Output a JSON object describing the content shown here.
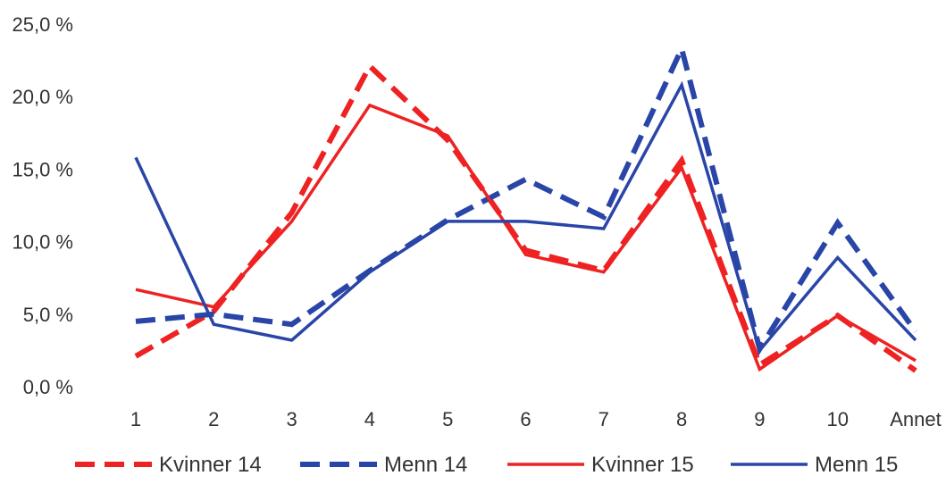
{
  "chart_data": {
    "type": "line",
    "categories": [
      "1",
      "2",
      "3",
      "4",
      "5",
      "6",
      "7",
      "8",
      "9",
      "10",
      "Annet"
    ],
    "ylim": [
      0,
      25
    ],
    "yticks": [
      "0,0 %",
      "5,0 %",
      "10,0 %",
      "15,0 %",
      "20,0 %",
      "25,0 %"
    ],
    "grid": false,
    "legend_position": "bottom",
    "series": [
      {
        "name": "Kvinner 14",
        "color": "#ee2222",
        "dashed": true,
        "values": [
          2.1,
          5.2,
          12.0,
          22.1,
          17.0,
          9.4,
          8.0,
          15.6,
          1.5,
          4.9,
          1.1
        ]
      },
      {
        "name": "Menn 14",
        "color": "#2a45a8",
        "dashed": true,
        "values": [
          4.5,
          5.0,
          4.3,
          8.0,
          11.5,
          14.3,
          11.7,
          23.3,
          2.6,
          11.3,
          3.8
        ]
      },
      {
        "name": "Kvinner 15",
        "color": "#ee2222",
        "dashed": false,
        "values": [
          6.7,
          5.5,
          11.4,
          19.4,
          17.3,
          9.1,
          7.9,
          15.1,
          1.2,
          4.9,
          1.8
        ]
      },
      {
        "name": "Menn 15",
        "color": "#2a45a8",
        "dashed": false,
        "values": [
          15.8,
          4.3,
          3.2,
          7.9,
          11.4,
          11.4,
          10.9,
          20.8,
          2.5,
          8.9,
          3.2
        ]
      }
    ]
  }
}
